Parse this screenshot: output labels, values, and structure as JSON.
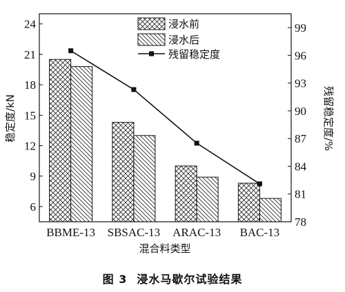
{
  "chart_data": {
    "type": "bar",
    "categories": [
      "BBME-13",
      "SBSAC-13",
      "ARAC-13",
      "BAC-13"
    ],
    "series": [
      {
        "name": "浸水前",
        "axis": "left",
        "pattern": "crosshatch",
        "values": [
          20.5,
          14.3,
          10.0,
          8.3
        ]
      },
      {
        "name": "浸水后",
        "axis": "left",
        "pattern": "diagonal",
        "values": [
          19.8,
          13.0,
          8.9,
          6.8
        ]
      },
      {
        "name": "残留稳定度",
        "axis": "right",
        "type": "line",
        "marker": "square",
        "values": [
          96.5,
          92.3,
          86.5,
          82.1
        ]
      }
    ],
    "xlabel": "混合料类型",
    "ylabel": "稳定度/kN",
    "y2label": "残留稳定度/%",
    "ylim": [
      4.5,
      25
    ],
    "yticks": [
      "6",
      "9",
      "12",
      "15",
      "18",
      "21",
      "24"
    ],
    "y2lim": [
      78,
      100.5
    ],
    "y2ticks": [
      "78",
      "81",
      "84",
      "87",
      "90",
      "93",
      "96",
      "99"
    ],
    "legend_position": "top-center",
    "grid": false
  },
  "caption": {
    "number": "图 3",
    "text": "浸水马歇尔试验结果"
  }
}
